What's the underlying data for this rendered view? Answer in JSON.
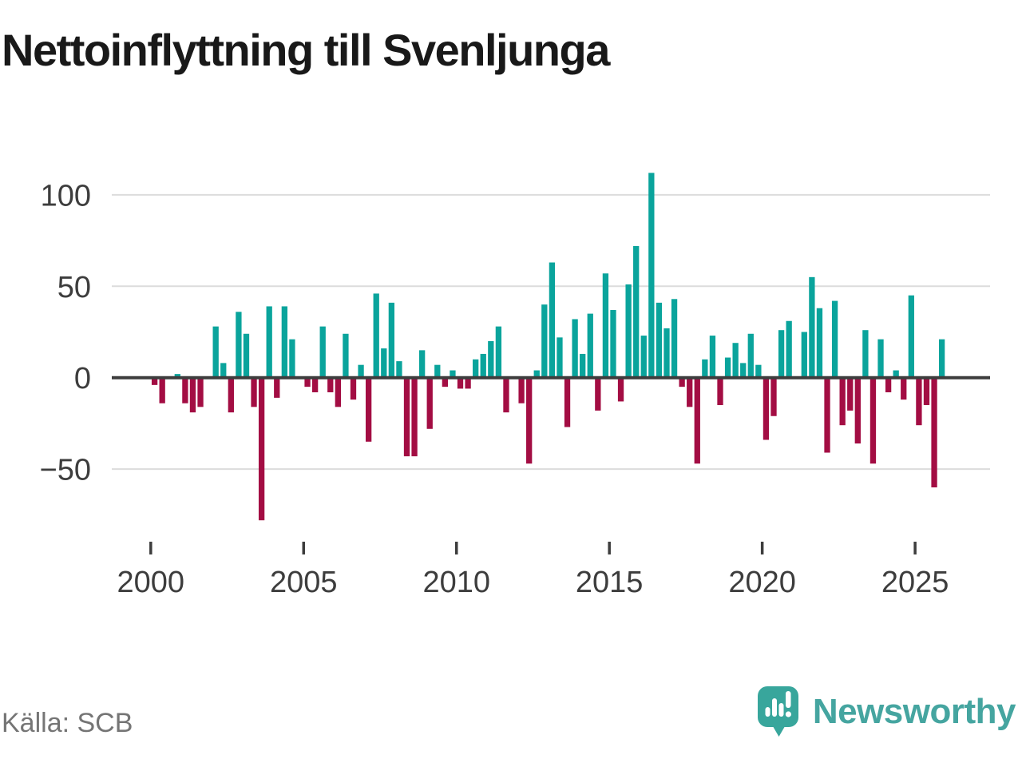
{
  "title": "Nettoinflyttning till Svenljunga",
  "source": "Källa: SCB",
  "brand": {
    "name": "Newsworthy",
    "icon": "newsworthy-speech-bubble-chart-icon"
  },
  "colors": {
    "positive": "#0aa49c",
    "negative": "#a30d43",
    "grid": "#dcdcdc",
    "axis": "#3d3d3d",
    "tick_text": "#3d3d3d",
    "title_text": "#191919",
    "source_text": "#757575",
    "brand_teal": "#45a5a0",
    "brand_bubble": "#38a69c",
    "background": "#ffffff"
  },
  "chart_data": {
    "type": "bar",
    "title": "Nettoinflyttning till Svenljunga",
    "frequency": "quarterly",
    "start_year": 2000,
    "series": [
      {
        "name": "Nettoinflyttning",
        "values": [
          -4,
          -14,
          0,
          2,
          -14,
          -19,
          -16,
          0,
          28,
          8,
          -19,
          36,
          24,
          -16,
          -78,
          39,
          -11,
          39,
          21,
          0,
          -5,
          -8,
          28,
          -8,
          -16,
          24,
          -12,
          7,
          -35,
          46,
          16,
          41,
          9,
          -43,
          -43,
          15,
          -28,
          7,
          -5,
          4,
          -6,
          -6,
          10,
          13,
          20,
          28,
          -19,
          0,
          -14,
          -47,
          4,
          40,
          63,
          22,
          -27,
          32,
          13,
          35,
          -18,
          57,
          37,
          -13,
          51,
          72,
          23,
          112,
          41,
          27,
          43,
          -5,
          -16,
          -47,
          10,
          23,
          -15,
          11,
          19,
          8,
          24,
          7,
          -34,
          -21,
          26,
          31,
          0,
          25,
          55,
          38,
          -41,
          42,
          -26,
          -18,
          -36,
          26,
          -47,
          21,
          -8,
          4,
          -12,
          45,
          -26,
          -15,
          -60,
          21
        ]
      }
    ],
    "xticks": {
      "labels": [
        "2000",
        "2005",
        "2010",
        "2015",
        "2020",
        "2025"
      ],
      "years_per_tick": 5
    },
    "yticks": {
      "values": [
        100,
        50,
        0,
        -50
      ],
      "labels": [
        "100",
        "50",
        "0",
        "−50"
      ]
    },
    "ylim": [
      -80,
      115
    ],
    "grid": "horizontal",
    "legend": "none",
    "xlabel": "",
    "ylabel": ""
  }
}
